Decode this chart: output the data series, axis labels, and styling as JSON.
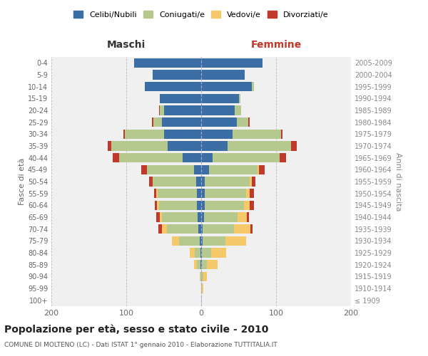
{
  "age_groups": [
    "100+",
    "95-99",
    "90-94",
    "85-89",
    "80-84",
    "75-79",
    "70-74",
    "65-69",
    "60-64",
    "55-59",
    "50-54",
    "45-49",
    "40-44",
    "35-39",
    "30-34",
    "25-29",
    "20-24",
    "15-19",
    "10-14",
    "5-9",
    "0-4"
  ],
  "birth_years": [
    "≤ 1909",
    "1910-1914",
    "1915-1919",
    "1920-1924",
    "1925-1929",
    "1930-1934",
    "1935-1939",
    "1940-1944",
    "1945-1949",
    "1950-1954",
    "1955-1959",
    "1960-1964",
    "1965-1969",
    "1970-1974",
    "1975-1979",
    "1980-1984",
    "1985-1989",
    "1990-1994",
    "1995-1999",
    "2000-2004",
    "2005-2009"
  ],
  "males": {
    "celibi": [
      0,
      0,
      0,
      1,
      1,
      2,
      4,
      5,
      6,
      6,
      7,
      10,
      25,
      45,
      50,
      52,
      50,
      55,
      75,
      65,
      90
    ],
    "coniugati": [
      0,
      0,
      1,
      5,
      8,
      28,
      42,
      47,
      50,
      52,
      58,
      62,
      85,
      75,
      52,
      12,
      5,
      0,
      0,
      0,
      0
    ],
    "vedovi": [
      0,
      0,
      1,
      4,
      6,
      9,
      6,
      3,
      3,
      2,
      0,
      0,
      0,
      0,
      0,
      0,
      0,
      0,
      0,
      0,
      0
    ],
    "divorziati": [
      0,
      0,
      0,
      0,
      0,
      0,
      5,
      5,
      3,
      3,
      5,
      8,
      8,
      5,
      2,
      2,
      1,
      0,
      0,
      0,
      0
    ]
  },
  "females": {
    "nubili": [
      0,
      0,
      0,
      1,
      1,
      2,
      2,
      4,
      5,
      5,
      5,
      10,
      15,
      35,
      42,
      48,
      45,
      50,
      68,
      58,
      82
    ],
    "coniugate": [
      0,
      1,
      3,
      7,
      12,
      30,
      42,
      45,
      52,
      55,
      60,
      65,
      90,
      85,
      65,
      15,
      8,
      2,
      2,
      0,
      0
    ],
    "vedove": [
      0,
      2,
      5,
      14,
      20,
      28,
      22,
      12,
      8,
      5,
      3,
      2,
      0,
      0,
      0,
      0,
      0,
      0,
      0,
      0,
      0
    ],
    "divorziate": [
      0,
      0,
      0,
      0,
      0,
      0,
      3,
      3,
      5,
      5,
      4,
      8,
      8,
      8,
      2,
      2,
      0,
      0,
      0,
      0,
      0
    ]
  },
  "colors": {
    "celibi": "#3B6EA5",
    "coniugati": "#B5C98E",
    "vedovi": "#F5C96A",
    "divorziati": "#C0392B"
  },
  "title": "Popolazione per età, sesso e stato civile - 2010",
  "subtitle": "COMUNE DI MOLTENO (LC) - Dati ISTAT 1° gennaio 2010 - Elaborazione TUTTITALIA.IT",
  "xlabel_left": "Maschi",
  "xlabel_right": "Femmine",
  "ylabel_left": "Fasce di età",
  "ylabel_right": "Anni di nascita",
  "xlim": 200,
  "bg_color": "#f0f0f0",
  "grid_color": "#cccccc"
}
